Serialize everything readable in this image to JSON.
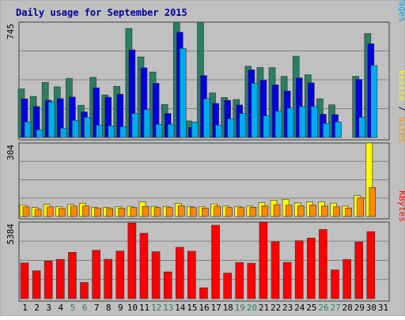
{
  "chart_data": {
    "type": "bar",
    "title": "Daily usage for September 2015",
    "categories": [
      "1",
      "2",
      "3",
      "4",
      "5",
      "6",
      "7",
      "8",
      "9",
      "10",
      "11",
      "12",
      "13",
      "14",
      "15",
      "16",
      "17",
      "18",
      "19",
      "20",
      "21",
      "22",
      "23",
      "24",
      "25",
      "26",
      "27",
      "28",
      "29",
      "30",
      "31"
    ],
    "weekend_days": [
      "5",
      "6",
      "12",
      "13",
      "19",
      "20",
      "26",
      "27"
    ],
    "panels": [
      {
        "id": "hits-files-pages",
        "ymax": 745,
        "tick_label": "745",
        "side_labels": [
          "Pages",
          "Files",
          "Hits"
        ],
        "series": [
          {
            "name": "Hits",
            "color": "#2a7f62",
            "values": [
              314,
              265,
              356,
              327,
              382,
              208,
              388,
              275,
              330,
              704,
              520,
              423,
              213,
              745,
              107,
              745,
              288,
              258,
              245,
              460,
              452,
              451,
              395,
              525,
              405,
              250,
              211,
              0,
              395,
              671,
              0
            ]
          },
          {
            "name": "Files",
            "color": "#0000e0",
            "values": [
              250,
              200,
              240,
              251,
              261,
              165,
              321,
              260,
              280,
              566,
              450,
              350,
              155,
              680,
              65,
              400,
              220,
              240,
              210,
              437,
              370,
              340,
              300,
              385,
              353,
              150,
              148,
              0,
              375,
              605,
              0
            ]
          },
          {
            "name": "Pages",
            "color": "#00aaf0",
            "values": [
              100,
              50,
              230,
              60,
              110,
              130,
              80,
              75,
              70,
              155,
              180,
              85,
              85,
              575,
              100,
              250,
              80,
              120,
              155,
              350,
              140,
              170,
              190,
              200,
              200,
              90,
              100,
              0,
              130,
              465,
              0
            ]
          }
        ]
      },
      {
        "id": "sites-visits",
        "ymax": 304,
        "tick_label": "304",
        "side_labels": [
          "Sites",
          "Visits"
        ],
        "series": [
          {
            "name": "Visits",
            "color": "#ffff00",
            "values": [
              48,
              37,
              50,
              40,
              50,
              55,
              38,
              37,
              40,
              42,
              60,
              42,
              42,
              54,
              40,
              40,
              52,
              43,
              42,
              43,
              57,
              67,
              71,
              56,
              60,
              61,
              55,
              43,
              86,
              304,
              0
            ]
          },
          {
            "name": "Sites",
            "color": "#ff8800",
            "values": [
              40,
              30,
              40,
              33,
              43,
              44,
              34,
              33,
              35,
              37,
              42,
              37,
              37,
              44,
              37,
              35,
              43,
              37,
              37,
              38,
              44,
              49,
              47,
              44,
              48,
              43,
              40,
              35,
              78,
              120,
              0
            ]
          }
        ]
      },
      {
        "id": "kbytes",
        "ymax": 5384,
        "tick_label": "5384",
        "side_labels": [
          "KBytes"
        ],
        "series": [
          {
            "name": "KBytes",
            "color": "#ff0000",
            "values": [
              2510,
              1960,
              2650,
              2760,
              3260,
              1140,
              3400,
              2770,
              3340,
              5310,
              4600,
              3300,
              1880,
              3610,
              3330,
              765,
              5160,
              1795,
              2540,
              2490,
              5380,
              4000,
              2550,
              4070,
              4260,
              4860,
              2020,
              2750,
              3990,
              4710,
              0
            ]
          }
        ]
      }
    ]
  }
}
